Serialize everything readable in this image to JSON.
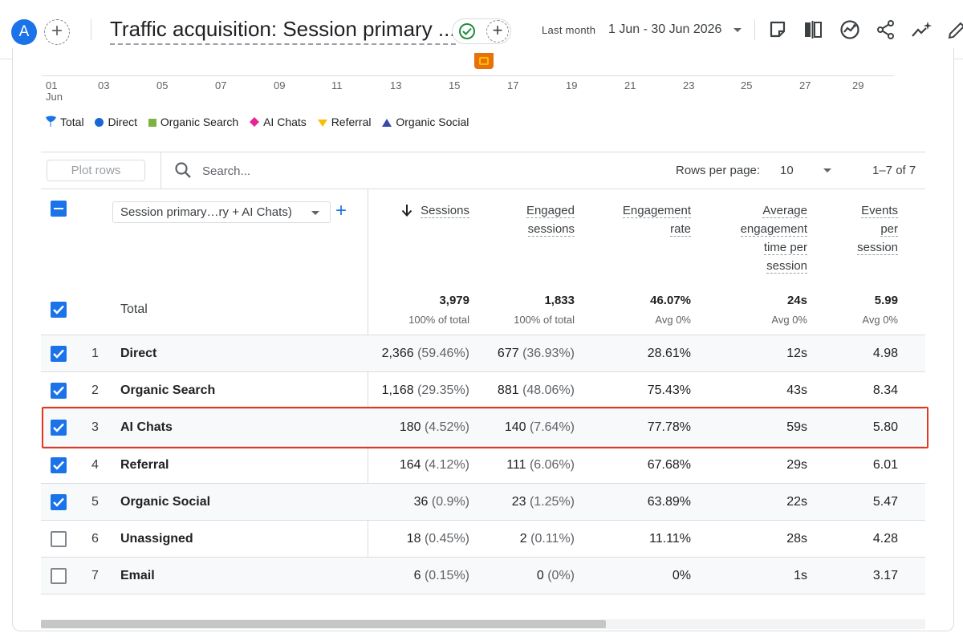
{
  "header": {
    "avatar_letter": "A",
    "add_comparison": "+",
    "title": "Traffic acquisition: Session primary ...",
    "status_add": "+",
    "date_label": "Last month",
    "date_range": "1 Jun - 30 Jun 2026",
    "tools": [
      "customize-report-icon",
      "compare-columns-icon",
      "insights-chart-icon",
      "share-icon",
      "sparkle-insights-icon",
      "edit-icon"
    ]
  },
  "chart": {
    "ticks": [
      "01",
      "03",
      "05",
      "07",
      "09",
      "11",
      "13",
      "15",
      "17",
      "19",
      "21",
      "23",
      "25",
      "27",
      "29"
    ],
    "month_label": "Jun",
    "legend": [
      {
        "label": "Total",
        "color": "#1a73e8",
        "shape": "pin"
      },
      {
        "label": "Direct",
        "color": "#1967d2",
        "shape": "circle"
      },
      {
        "label": "Organic Search",
        "color": "#7cb342",
        "shape": "square"
      },
      {
        "label": "AI Chats",
        "color": "#e52592",
        "shape": "diamond"
      },
      {
        "label": "Referral",
        "color": "#fbbc04",
        "shape": "triangle-down"
      },
      {
        "label": "Organic Social",
        "color": "#3949ab",
        "shape": "triangle-up"
      }
    ]
  },
  "table": {
    "plot_rows_label": "Plot rows",
    "search_placeholder": "Search...",
    "rows_per_page_label": "Rows per page:",
    "rows_per_page": "10",
    "pagination": "1–7 of 7",
    "dimension_select": "Session primary…ry + AI Chats)",
    "add_dimension": "+",
    "columns": {
      "sessions": [
        "Sessions"
      ],
      "engaged": [
        "Engaged",
        "sessions"
      ],
      "engagement_rate": [
        "Engagement",
        "rate"
      ],
      "avg_time": [
        "Average",
        "engagement",
        "time per",
        "session"
      ],
      "events": [
        "Events",
        "per",
        "session"
      ]
    },
    "total": {
      "label": "Total",
      "sessions": "3,979",
      "sessions_sub": "100% of total",
      "engaged": "1,833",
      "engaged_sub": "100% of total",
      "engagement_rate": "46.07%",
      "engagement_rate_sub": "Avg 0%",
      "avg_time": "24s",
      "avg_time_sub": "Avg 0%",
      "events": "5.99",
      "events_sub": "Avg 0%"
    },
    "rows": [
      {
        "rank": "1",
        "name": "Direct",
        "checked": true,
        "sessions": "2,366",
        "sessions_pct": "(59.46%)",
        "engaged": "677",
        "engaged_pct": "(36.93%)",
        "rate": "28.61%",
        "time": "12s",
        "events": "4.98"
      },
      {
        "rank": "2",
        "name": "Organic Search",
        "checked": true,
        "sessions": "1,168",
        "sessions_pct": "(29.35%)",
        "engaged": "881",
        "engaged_pct": "(48.06%)",
        "rate": "75.43%",
        "time": "43s",
        "events": "8.34"
      },
      {
        "rank": "3",
        "name": "AI Chats",
        "checked": true,
        "sessions": "180",
        "sessions_pct": "(4.52%)",
        "engaged": "140",
        "engaged_pct": "(7.64%)",
        "rate": "77.78%",
        "time": "59s",
        "events": "5.80"
      },
      {
        "rank": "4",
        "name": "Referral",
        "checked": true,
        "sessions": "164",
        "sessions_pct": "(4.12%)",
        "engaged": "111",
        "engaged_pct": "(6.06%)",
        "rate": "67.68%",
        "time": "29s",
        "events": "6.01"
      },
      {
        "rank": "5",
        "name": "Organic Social",
        "checked": true,
        "sessions": "36",
        "sessions_pct": "(0.9%)",
        "engaged": "23",
        "engaged_pct": "(1.25%)",
        "rate": "63.89%",
        "time": "22s",
        "events": "5.47"
      },
      {
        "rank": "6",
        "name": "Unassigned",
        "checked": false,
        "sessions": "18",
        "sessions_pct": "(0.45%)",
        "engaged": "2",
        "engaged_pct": "(0.11%)",
        "rate": "11.11%",
        "time": "28s",
        "events": "4.28"
      },
      {
        "rank": "7",
        "name": "Email",
        "checked": false,
        "sessions": "6",
        "sessions_pct": "(0.15%)",
        "engaged": "0",
        "engaged_pct": "(0%)",
        "rate": "0%",
        "time": "1s",
        "events": "3.17"
      }
    ],
    "highlighted_row": "AI Chats"
  }
}
